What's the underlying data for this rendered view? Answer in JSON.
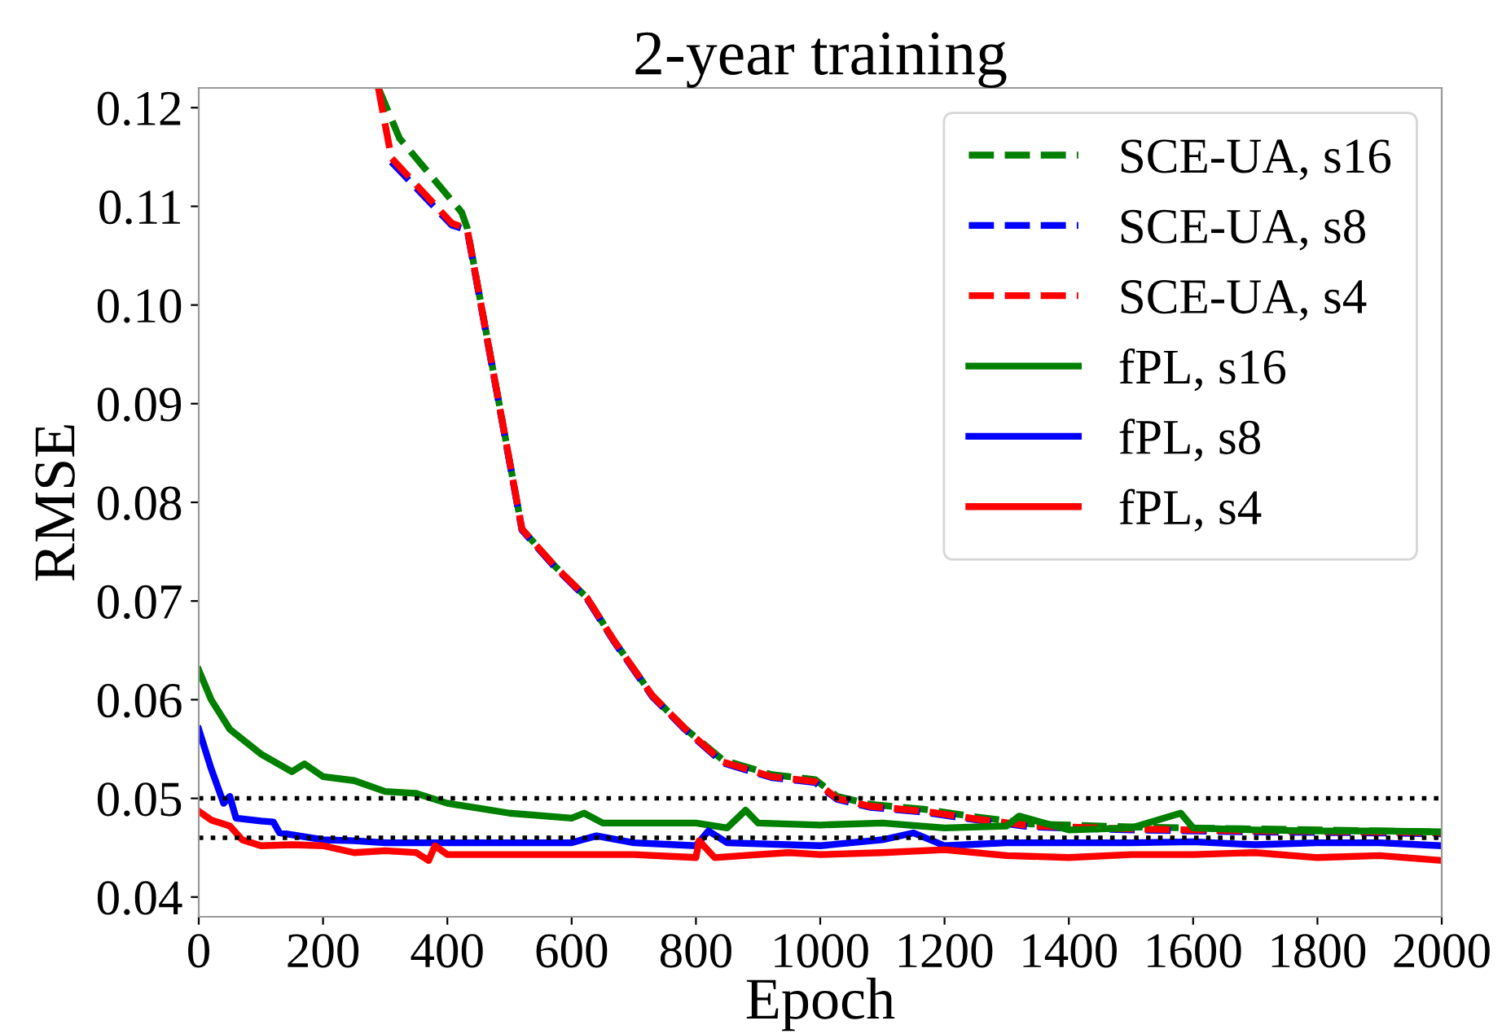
{
  "chart_data": {
    "type": "line",
    "title": "2-year training",
    "xlabel": "Epoch",
    "ylabel": "RMSE",
    "xlim": [
      0,
      2000
    ],
    "xticks": [
      0,
      200,
      400,
      600,
      800,
      1000,
      1200,
      1400,
      1600,
      1800,
      2000
    ],
    "ylim": [
      0.038,
      0.122
    ],
    "yticks": [
      {
        "value": 0.04,
        "label": "0.04"
      },
      {
        "value": 0.05,
        "label": "0.05"
      },
      {
        "value": 0.06,
        "label": "0.06"
      },
      {
        "value": 0.07,
        "label": "0.07"
      },
      {
        "value": 0.08,
        "label": "0.08"
      },
      {
        "value": 0.09,
        "label": "0.09"
      },
      {
        "value": 0.1,
        "label": "0.10"
      },
      {
        "value": 0.11,
        "label": "0.11"
      },
      {
        "value": 0.12,
        "label": "0.12"
      }
    ],
    "grid": false,
    "legend": "top right",
    "marker": "none",
    "ref_lines": [
      {
        "axis": "y",
        "value": 0.05,
        "color": "#000000",
        "line_style": "dotted"
      },
      {
        "axis": "y",
        "value": 0.046,
        "color": "#000000",
        "line_style": "dotted"
      }
    ],
    "series": [
      {
        "name": "SCE-UA, s16",
        "color": "#007f00",
        "line_style": "dashed",
        "x": [
          289,
          323,
          423,
          432,
          520,
          572,
          625,
          668,
          730,
          782,
          843,
          922,
          992,
          1027,
          1080,
          1166,
          1253,
          1340,
          1500,
          1700,
          1900,
          2000
        ],
        "values": [
          0.122,
          0.1169,
          0.1094,
          0.1078,
          0.0773,
          0.0736,
          0.0703,
          0.066,
          0.0604,
          0.0571,
          0.0539,
          0.0524,
          0.0519,
          0.0502,
          0.0494,
          0.0489,
          0.0481,
          0.0474,
          0.0471,
          0.0469,
          0.0467,
          0.0466
        ]
      },
      {
        "name": "SCE-UA, s8",
        "color": "#0000ff",
        "line_style": "dashed",
        "x": [
          310,
          407,
          432,
          520,
          572,
          625,
          668,
          730,
          782,
          843,
          922,
          992,
          1027,
          1080,
          1166,
          1253,
          1340,
          1500,
          1700,
          1900,
          2000
        ],
        "values": [
          0.1145,
          0.1081,
          0.1076,
          0.0772,
          0.0735,
          0.0702,
          0.0659,
          0.0603,
          0.057,
          0.0536,
          0.0521,
          0.0516,
          0.0499,
          0.0491,
          0.0486,
          0.0478,
          0.0471,
          0.0468,
          0.0466,
          0.0465,
          0.0464
        ]
      },
      {
        "name": "SCE-UA, s4",
        "color": "#ff0000",
        "line_style": "dashed",
        "x": [
          289,
          310,
          407,
          432,
          520,
          572,
          625,
          668,
          730,
          782,
          843,
          922,
          992,
          1027,
          1080,
          1166,
          1253,
          1340,
          1500,
          1700,
          1900,
          2000
        ],
        "values": [
          0.122,
          0.1149,
          0.1083,
          0.1077,
          0.0773,
          0.0736,
          0.0703,
          0.066,
          0.0604,
          0.0571,
          0.0537,
          0.0522,
          0.0517,
          0.05,
          0.0492,
          0.0487,
          0.0479,
          0.0472,
          0.0469,
          0.0467,
          0.0466,
          0.0465
        ]
      },
      {
        "name": "fPL, s16",
        "color": "#007f00",
        "line_style": "solid",
        "x": [
          0,
          20,
          50,
          100,
          150,
          170,
          200,
          250,
          300,
          350,
          400,
          450,
          500,
          600,
          620,
          650,
          800,
          850,
          880,
          900,
          1000,
          1100,
          1200,
          1300,
          1320,
          1400,
          1500,
          1580,
          1600,
          1700,
          1800,
          1900,
          2000
        ],
        "values": [
          0.063,
          0.06,
          0.057,
          0.0545,
          0.0527,
          0.0535,
          0.0522,
          0.0518,
          0.0507,
          0.0505,
          0.0495,
          0.049,
          0.0485,
          0.048,
          0.0485,
          0.0475,
          0.0475,
          0.047,
          0.0488,
          0.0475,
          0.0473,
          0.0475,
          0.047,
          0.0472,
          0.0482,
          0.0468,
          0.047,
          0.0485,
          0.047,
          0.0468,
          0.0467,
          0.0467,
          0.0466
        ]
      },
      {
        "name": "fPL, s8",
        "color": "#0000ff",
        "line_style": "solid",
        "x": [
          0,
          20,
          40,
          50,
          60,
          100,
          120,
          130,
          200,
          250,
          300,
          400,
          500,
          600,
          640,
          700,
          800,
          820,
          850,
          1000,
          1100,
          1150,
          1200,
          1300,
          1400,
          1500,
          1600,
          1700,
          1800,
          1900,
          2000
        ],
        "values": [
          0.057,
          0.053,
          0.0495,
          0.0502,
          0.048,
          0.0477,
          0.0476,
          0.0465,
          0.0458,
          0.0457,
          0.0455,
          0.0455,
          0.0455,
          0.0455,
          0.0462,
          0.0455,
          0.0452,
          0.0467,
          0.0455,
          0.0452,
          0.0458,
          0.0465,
          0.0452,
          0.0455,
          0.0455,
          0.0455,
          0.0456,
          0.0453,
          0.0455,
          0.0455,
          0.0452
        ]
      },
      {
        "name": "fPL, s4",
        "color": "#ff0000",
        "line_style": "solid",
        "x": [
          0,
          20,
          50,
          70,
          100,
          150,
          200,
          250,
          300,
          350,
          370,
          380,
          400,
          500,
          600,
          700,
          800,
          805,
          830,
          900,
          950,
          1000,
          1100,
          1200,
          1300,
          1400,
          1500,
          1600,
          1700,
          1800,
          1900,
          2000
        ],
        "values": [
          0.0487,
          0.0478,
          0.0472,
          0.0458,
          0.0452,
          0.0453,
          0.0452,
          0.0445,
          0.0447,
          0.0445,
          0.0437,
          0.0452,
          0.0443,
          0.0443,
          0.0443,
          0.0443,
          0.044,
          0.0457,
          0.044,
          0.0443,
          0.0445,
          0.0443,
          0.0445,
          0.0448,
          0.0442,
          0.044,
          0.0443,
          0.0443,
          0.0445,
          0.044,
          0.0442,
          0.0437
        ]
      }
    ]
  }
}
